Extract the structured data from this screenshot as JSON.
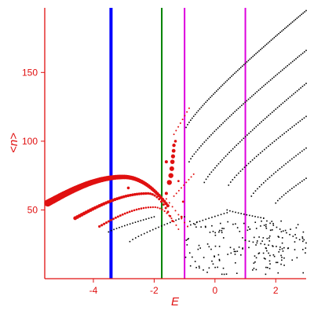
{
  "chart_data": {
    "type": "scatter",
    "xlabel": "E",
    "ylabel": "<n>",
    "xlim": [
      -5.6,
      3.0
    ],
    "ylim": [
      0,
      197
    ],
    "grid": false,
    "x_ticks": [
      -4,
      -2,
      0,
      2
    ],
    "y_ticks": [
      50,
      100,
      150
    ],
    "x_tick_labels": [
      "-4",
      "-2",
      "0",
      "2"
    ],
    "y_tick_labels": [
      "50",
      "100",
      "150"
    ],
    "colors": {
      "axes": "#e01010",
      "red_series": "#e01010",
      "black_series": "#000000",
      "line_blue": "#0000ff",
      "line_green": "#008000",
      "line_magenta": "#dd00dd"
    },
    "vertical_lines": [
      {
        "x": -3.42,
        "color": "#0000ff"
      },
      {
        "x": -1.75,
        "color": "#008000"
      },
      {
        "x": -1.0,
        "color": "#dd00dd"
      },
      {
        "x": 1.0,
        "color": "#dd00dd"
      }
    ],
    "red_bands": [
      {
        "x_start": -5.5,
        "x_end": -1.55,
        "y_start": 55,
        "y_peak": 74,
        "x_peak": -3.0,
        "n": 70,
        "size_start": 4.5,
        "size_end": 2.0
      },
      {
        "x_start": -4.6,
        "x_end": -1.4,
        "y_start": 44,
        "y_peak": 62,
        "x_peak": -2.2,
        "n": 45,
        "size_start": 2.4,
        "size_end": 1.4
      },
      {
        "x_start": -3.8,
        "x_end": -1.2,
        "y_start": 38,
        "y_peak": 52,
        "x_peak": -2.0,
        "n": 35,
        "size_start": 1.6,
        "size_end": 1.0
      }
    ],
    "red_points": [
      {
        "x": -1.5,
        "y": 70,
        "size": 3.2
      },
      {
        "x": -1.45,
        "y": 75,
        "size": 3.2
      },
      {
        "x": -1.42,
        "y": 80,
        "size": 3.0
      },
      {
        "x": -1.4,
        "y": 85,
        "size": 2.8
      },
      {
        "x": -1.38,
        "y": 89,
        "size": 2.6
      },
      {
        "x": -1.36,
        "y": 93,
        "size": 2.4
      },
      {
        "x": -1.35,
        "y": 97,
        "size": 2.2
      },
      {
        "x": -1.6,
        "y": 62,
        "size": 2.0
      },
      {
        "x": -1.3,
        "y": 100,
        "size": 1.8
      },
      {
        "x": -1.6,
        "y": 85,
        "size": 2.0
      },
      {
        "x": -2.85,
        "y": 66,
        "size": 1.8
      },
      {
        "x": -1.2,
        "y": 71,
        "size": 1.4
      },
      {
        "x": -1.05,
        "y": 56,
        "size": 1.4
      },
      {
        "x": -1.1,
        "y": 45,
        "size": 1.4
      }
    ],
    "red_curves": [
      {
        "x_start": -1.35,
        "x_end": -0.85,
        "y_start": 105,
        "y_end": 124,
        "n": 8,
        "size": 1.0
      },
      {
        "x_start": -1.35,
        "x_end": -0.7,
        "y_start": 60,
        "y_end": 76,
        "n": 9,
        "size": 1.0
      },
      {
        "x_start": -1.6,
        "x_end": -0.9,
        "y_start": 58,
        "y_end": 38,
        "n": 8,
        "size": 1.0
      }
    ],
    "black_curves": [
      {
        "x_start": -0.95,
        "x_end": 3.0,
        "y_start": 110,
        "y_end": 195,
        "n": 80
      },
      {
        "x_start": -0.85,
        "x_end": 3.0,
        "y_start": 85,
        "y_end": 166,
        "n": 70
      },
      {
        "x_start": -0.35,
        "x_end": 3.0,
        "y_start": 70,
        "y_end": 142,
        "n": 58
      },
      {
        "x_start": 0.45,
        "x_end": 3.0,
        "y_start": 68,
        "y_end": 118,
        "n": 40
      },
      {
        "x_start": 1.2,
        "x_end": 3.0,
        "y_start": 60,
        "y_end": 95,
        "n": 28
      },
      {
        "x_start": 2.0,
        "x_end": 3.0,
        "y_start": 55,
        "y_end": 73,
        "n": 16
      },
      {
        "x_start": -3.5,
        "x_end": -2.0,
        "y_start": 34,
        "y_end": 45,
        "n": 18
      },
      {
        "x_start": -2.8,
        "x_end": -1.0,
        "y_start": 27,
        "y_end": 45,
        "n": 20
      },
      {
        "x_start": -0.9,
        "x_end": 0.4,
        "y_start": 38,
        "y_end": 48,
        "n": 14
      },
      {
        "x_start": 0.4,
        "x_end": 1.6,
        "y_start": 50,
        "y_end": 44,
        "n": 14
      },
      {
        "x_start": 1.6,
        "x_end": 3.0,
        "y_start": 44,
        "y_end": 26,
        "n": 14
      },
      {
        "x_start": 1.0,
        "x_end": 2.4,
        "y_start": 28,
        "y_end": 22,
        "n": 12
      }
    ],
    "black_cluster": {
      "x_range": [
        -1.0,
        3.0
      ],
      "y_range": [
        3,
        42
      ],
      "n": 170
    }
  }
}
